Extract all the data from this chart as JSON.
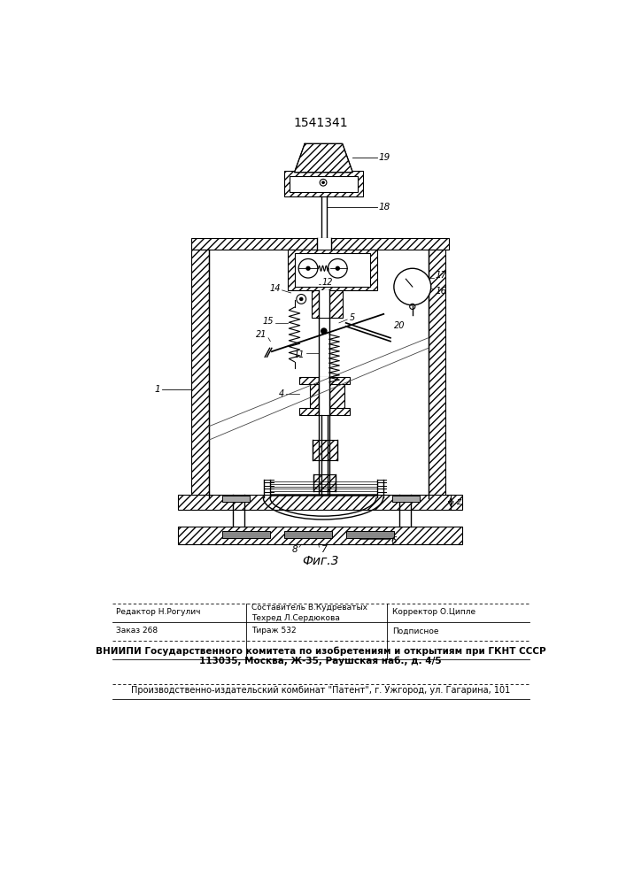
{
  "patent_number": "1541341",
  "background": "#ffffff",
  "line_color": "#000000",
  "fig_caption": "Фиг.3",
  "footer": {
    "editor": "Редактор Н.Рогулич",
    "composer": "Составитель В.Кудреватых",
    "techred": "Техред Л.Сердюкова",
    "corrector": "Корректор О.Ципле",
    "order": "Заказ 268",
    "tirazh": "Тираж 532",
    "podp": "Подписное",
    "vnipi": "ВНИИПИ Государственного комитета по изобретениям и открытиям при ГКНТ СССР",
    "address": "113035, Москва, Ж-35, Раушская наб., д. 4/5",
    "patent_plant": "Производственно-издательский комбинат \"Патент\", г. Ужгород, ул. Гагарина, 101"
  }
}
